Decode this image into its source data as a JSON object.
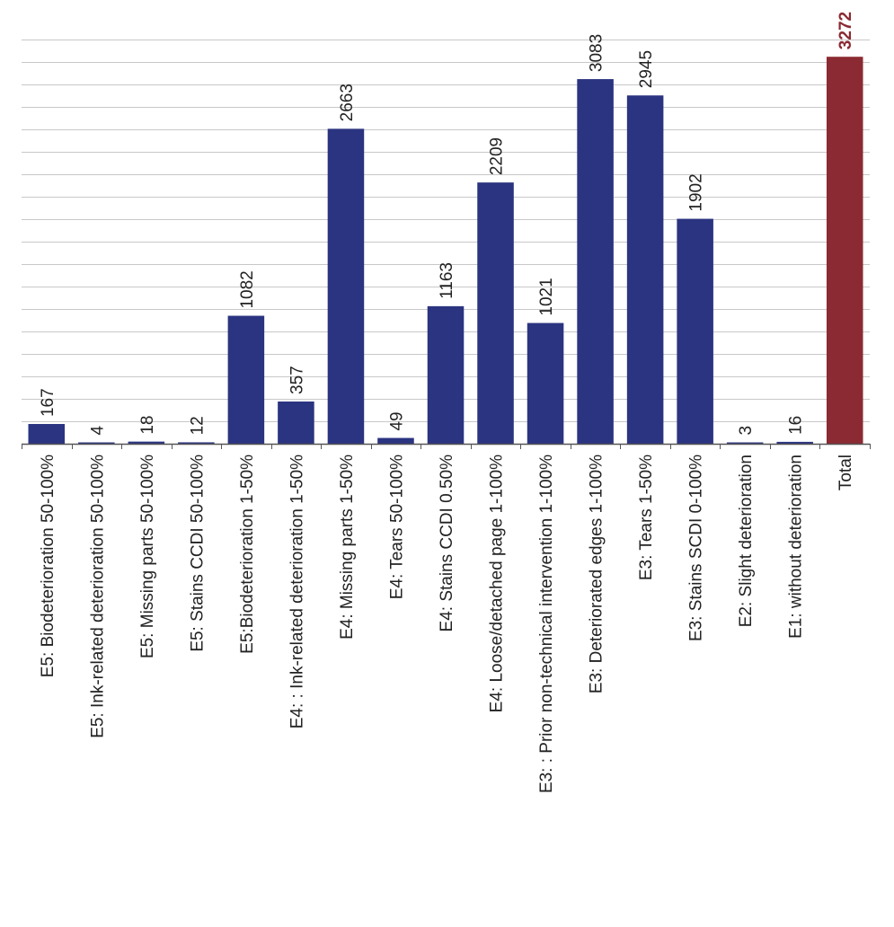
{
  "chart_data": {
    "type": "bar",
    "categories": [
      "E5: Biodeterioration 50-100%",
      "E5: Ink-related deterioration 50-100%",
      "E5: Missing parts 50-100%",
      "E5: Stains CCDI 50-100%",
      "E5:Biodeterioration 1-50%",
      "E4: : Ink-related deterioration 1-50%",
      "E4: Missing parts 1-50%",
      "E4: Tears 50-100%",
      "E4: Stains CCDI 0.50%",
      "E4: Loose/detached page 1-100%",
      "E3: : Prior non-technical intervention 1-100%",
      "E3: Deteriorated edges 1-100%",
      "E3: Tears 1-50%",
      "E3: Stains SCDI 0-100%",
      "E2: Slight deterioration",
      "E1: without deterioration",
      "Total"
    ],
    "values": [
      167,
      4,
      18,
      12,
      1082,
      357,
      2663,
      49,
      1163,
      2209,
      1021,
      3083,
      2945,
      1902,
      3,
      16,
      3272
    ],
    "value_labels": [
      "167",
      "4",
      "18",
      "12",
      "1082",
      "357",
      "2663",
      "49",
      "1163",
      "2209",
      "1021",
      "3083",
      "2945",
      "1902",
      "3",
      "16",
      "3272"
    ],
    "ylim": [
      0,
      3600
    ],
    "grid": true,
    "grid_step": 190,
    "bar_color": "#2b3480",
    "highlight_color": "#8b2a32",
    "highlight_index": 16,
    "title": "",
    "xlabel": "",
    "ylabel": ""
  }
}
